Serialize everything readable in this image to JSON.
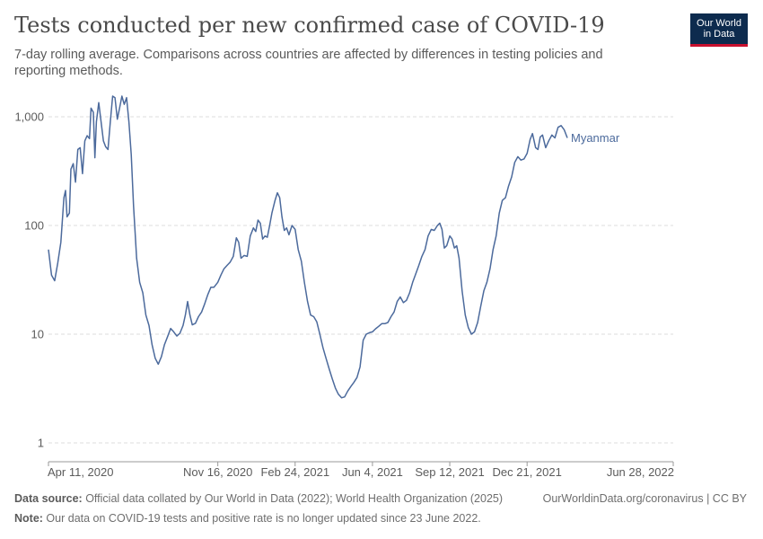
{
  "header": {
    "title": "Tests conducted per new confirmed case of COVID-19",
    "subtitle": "7-day rolling average. Comparisons across countries are affected by differences in testing policies and reporting methods.",
    "logo_line1": "Our World",
    "logo_line2": "in Data"
  },
  "footer": {
    "source_label": "Data source:",
    "source_text": " Official data collated by Our World in Data (2022); World Health Organization (2025)",
    "note_label": "Note:",
    "note_text": " Our data on COVID-19 tests and positive rate is no longer updated since 23 June 2022.",
    "link_text": "OurWorldinData.org/coronavirus | CC BY"
  },
  "colors": {
    "series": "#4c6a9c",
    "grid": "#dddddd",
    "text": "#5b5b5b",
    "logo_bg": "#0d2b4e",
    "logo_accent": "#c8102e"
  },
  "chart_data": {
    "type": "line",
    "title": "Tests conducted per new confirmed case of COVID-19",
    "subtitle": "7-day rolling average. Comparisons across countries are affected by differences in testing policies and reporting methods.",
    "y_scale": "log",
    "ylim": [
      1,
      1600
    ],
    "y_ticks": [
      1,
      10,
      100,
      1000
    ],
    "y_tick_labels": [
      "1",
      "10",
      "100",
      "1,000"
    ],
    "xlim": [
      "2020-04-11",
      "2022-06-28"
    ],
    "x_ticks": [
      "2020-04-11",
      "2020-11-16",
      "2021-02-24",
      "2021-06-04",
      "2021-09-12",
      "2021-12-21",
      "2022-06-28"
    ],
    "x_tick_labels": [
      "Apr 11, 2020",
      "Nov 16, 2020",
      "Feb 24, 2021",
      "Jun 4, 2021",
      "Sep 12, 2021",
      "Dec 21, 2021",
      "Jun 28, 2022"
    ],
    "grid": true,
    "series": [
      {
        "name": "Myanmar",
        "points": [
          [
            "2020-04-11",
            60
          ],
          [
            "2020-04-15",
            35
          ],
          [
            "2020-04-19",
            31
          ],
          [
            "2020-04-23",
            45
          ],
          [
            "2020-04-27",
            70
          ],
          [
            "2020-05-01",
            180
          ],
          [
            "2020-05-03",
            210
          ],
          [
            "2020-05-05",
            120
          ],
          [
            "2020-05-08",
            130
          ],
          [
            "2020-05-10",
            330
          ],
          [
            "2020-05-13",
            370
          ],
          [
            "2020-05-16",
            250
          ],
          [
            "2020-05-19",
            500
          ],
          [
            "2020-05-22",
            520
          ],
          [
            "2020-05-25",
            300
          ],
          [
            "2020-05-28",
            600
          ],
          [
            "2020-05-31",
            670
          ],
          [
            "2020-06-03",
            630
          ],
          [
            "2020-06-05",
            1200
          ],
          [
            "2020-06-08",
            1100
          ],
          [
            "2020-06-10",
            420
          ],
          [
            "2020-06-12",
            900
          ],
          [
            "2020-06-15",
            1350
          ],
          [
            "2020-06-18",
            900
          ],
          [
            "2020-06-21",
            600
          ],
          [
            "2020-06-24",
            530
          ],
          [
            "2020-06-27",
            500
          ],
          [
            "2020-06-30",
            900
          ],
          [
            "2020-07-03",
            1550
          ],
          [
            "2020-07-06",
            1500
          ],
          [
            "2020-07-09",
            950
          ],
          [
            "2020-07-12",
            1200
          ],
          [
            "2020-07-15",
            1550
          ],
          [
            "2020-07-18",
            1300
          ],
          [
            "2020-07-21",
            1500
          ],
          [
            "2020-07-24",
            900
          ],
          [
            "2020-07-27",
            450
          ],
          [
            "2020-07-30",
            150
          ],
          [
            "2020-08-03",
            50
          ],
          [
            "2020-08-07",
            30
          ],
          [
            "2020-08-11",
            24
          ],
          [
            "2020-08-15",
            15
          ],
          [
            "2020-08-19",
            12
          ],
          [
            "2020-08-23",
            8
          ],
          [
            "2020-08-27",
            6
          ],
          [
            "2020-08-31",
            5.3
          ],
          [
            "2020-09-04",
            6.2
          ],
          [
            "2020-09-08",
            8
          ],
          [
            "2020-09-12",
            9.5
          ],
          [
            "2020-09-16",
            11.3
          ],
          [
            "2020-09-20",
            10.5
          ],
          [
            "2020-09-24",
            9.6
          ],
          [
            "2020-09-28",
            10.2
          ],
          [
            "2020-10-02",
            12
          ],
          [
            "2020-10-05",
            15
          ],
          [
            "2020-10-08",
            20
          ],
          [
            "2020-10-11",
            15
          ],
          [
            "2020-10-14",
            12.2
          ],
          [
            "2020-10-18",
            12.6
          ],
          [
            "2020-10-22",
            14.5
          ],
          [
            "2020-10-26",
            16
          ],
          [
            "2020-10-30",
            19
          ],
          [
            "2020-11-03",
            23
          ],
          [
            "2020-11-07",
            27
          ],
          [
            "2020-11-11",
            27
          ],
          [
            "2020-11-16",
            30
          ],
          [
            "2020-11-20",
            35
          ],
          [
            "2020-11-24",
            40
          ],
          [
            "2020-11-28",
            43
          ],
          [
            "2020-12-02",
            46
          ],
          [
            "2020-12-06",
            52
          ],
          [
            "2020-12-10",
            77
          ],
          [
            "2020-12-13",
            70
          ],
          [
            "2020-12-16",
            50
          ],
          [
            "2020-12-20",
            53
          ],
          [
            "2020-12-24",
            52
          ],
          [
            "2020-12-28",
            80
          ],
          [
            "2021-01-01",
            95
          ],
          [
            "2021-01-04",
            88
          ],
          [
            "2021-01-07",
            112
          ],
          [
            "2021-01-10",
            105
          ],
          [
            "2021-01-13",
            75
          ],
          [
            "2021-01-16",
            80
          ],
          [
            "2021-01-19",
            78
          ],
          [
            "2021-01-22",
            100
          ],
          [
            "2021-01-25",
            130
          ],
          [
            "2021-01-29",
            170
          ],
          [
            "2021-02-01",
            200
          ],
          [
            "2021-02-04",
            180
          ],
          [
            "2021-02-07",
            120
          ],
          [
            "2021-02-10",
            90
          ],
          [
            "2021-02-13",
            95
          ],
          [
            "2021-02-16",
            82
          ],
          [
            "2021-02-20",
            100
          ],
          [
            "2021-02-24",
            92
          ],
          [
            "2021-02-28",
            60
          ],
          [
            "2021-03-04",
            47
          ],
          [
            "2021-03-08",
            30
          ],
          [
            "2021-03-12",
            20
          ],
          [
            "2021-03-16",
            15
          ],
          [
            "2021-03-20",
            14.5
          ],
          [
            "2021-03-24",
            13
          ],
          [
            "2021-03-28",
            10
          ],
          [
            "2021-04-01",
            7.5
          ],
          [
            "2021-04-05",
            6
          ],
          [
            "2021-04-09",
            4.8
          ],
          [
            "2021-04-13",
            3.9
          ],
          [
            "2021-04-17",
            3.2
          ],
          [
            "2021-04-21",
            2.8
          ],
          [
            "2021-04-25",
            2.6
          ],
          [
            "2021-04-29",
            2.65
          ],
          [
            "2021-05-03",
            3
          ],
          [
            "2021-05-07",
            3.3
          ],
          [
            "2021-05-11",
            3.6
          ],
          [
            "2021-05-15",
            4
          ],
          [
            "2021-05-19",
            5
          ],
          [
            "2021-05-23",
            8.8
          ],
          [
            "2021-05-27",
            10
          ],
          [
            "2021-05-31",
            10.3
          ],
          [
            "2021-06-04",
            10.5
          ],
          [
            "2021-06-08",
            11.2
          ],
          [
            "2021-06-12",
            11.8
          ],
          [
            "2021-06-16",
            12.5
          ],
          [
            "2021-06-20",
            12.5
          ],
          [
            "2021-06-24",
            12.8
          ],
          [
            "2021-06-28",
            14.5
          ],
          [
            "2021-07-02",
            16
          ],
          [
            "2021-07-06",
            20
          ],
          [
            "2021-07-10",
            22
          ],
          [
            "2021-07-14",
            19.5
          ],
          [
            "2021-07-18",
            20.5
          ],
          [
            "2021-07-22",
            24
          ],
          [
            "2021-07-26",
            30
          ],
          [
            "2021-07-30",
            36
          ],
          [
            "2021-08-03",
            43
          ],
          [
            "2021-08-07",
            52
          ],
          [
            "2021-08-11",
            60
          ],
          [
            "2021-08-15",
            80
          ],
          [
            "2021-08-19",
            92
          ],
          [
            "2021-08-23",
            90
          ],
          [
            "2021-08-27",
            100
          ],
          [
            "2021-08-30",
            105
          ],
          [
            "2021-09-02",
            92
          ],
          [
            "2021-09-05",
            62
          ],
          [
            "2021-09-08",
            65
          ],
          [
            "2021-09-11",
            76
          ],
          [
            "2021-09-12",
            80
          ],
          [
            "2021-09-15",
            75
          ],
          [
            "2021-09-18",
            62
          ],
          [
            "2021-09-21",
            65
          ],
          [
            "2021-09-24",
            50
          ],
          [
            "2021-09-28",
            25
          ],
          [
            "2021-10-02",
            15
          ],
          [
            "2021-10-06",
            11.5
          ],
          [
            "2021-10-10",
            10
          ],
          [
            "2021-10-14",
            10.5
          ],
          [
            "2021-10-18",
            12.8
          ],
          [
            "2021-10-22",
            18
          ],
          [
            "2021-10-26",
            25
          ],
          [
            "2021-10-30",
            30
          ],
          [
            "2021-11-03",
            40
          ],
          [
            "2021-11-07",
            60
          ],
          [
            "2021-11-11",
            80
          ],
          [
            "2021-11-15",
            130
          ],
          [
            "2021-11-19",
            170
          ],
          [
            "2021-11-23",
            180
          ],
          [
            "2021-11-27",
            230
          ],
          [
            "2021-12-01",
            280
          ],
          [
            "2021-12-05",
            380
          ],
          [
            "2021-12-09",
            430
          ],
          [
            "2021-12-13",
            400
          ],
          [
            "2021-12-17",
            410
          ],
          [
            "2021-12-21",
            460
          ],
          [
            "2021-12-25",
            620
          ],
          [
            "2021-12-28",
            700
          ],
          [
            "2022-01-01",
            520
          ],
          [
            "2022-01-04",
            500
          ],
          [
            "2022-01-07",
            650
          ],
          [
            "2022-01-10",
            680
          ],
          [
            "2022-01-14",
            520
          ],
          [
            "2022-01-18",
            600
          ],
          [
            "2022-01-22",
            680
          ],
          [
            "2022-01-26",
            640
          ],
          [
            "2022-01-30",
            800
          ],
          [
            "2022-02-03",
            830
          ],
          [
            "2022-02-07",
            760
          ],
          [
            "2022-02-11",
            640
          ]
        ]
      }
    ]
  }
}
